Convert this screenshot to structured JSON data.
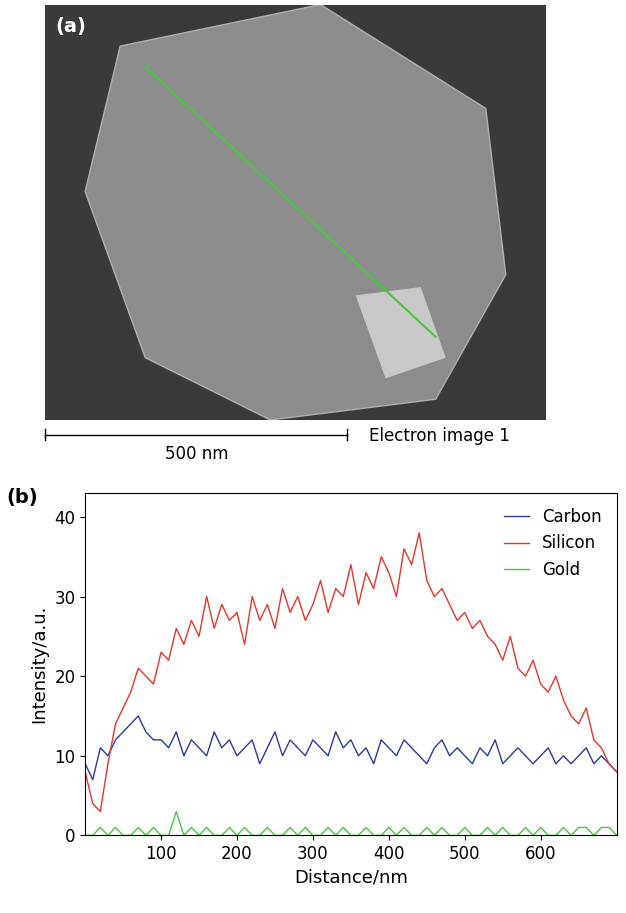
{
  "image": {
    "label": "(a)",
    "scale_bar": "500 nm",
    "caption": "Electron image 1"
  },
  "chart_data": {
    "type": "line",
    "label": "(b)",
    "xlabel": "Distance/nm",
    "ylabel": "Intensity/a.u.",
    "x": [
      0,
      10,
      20,
      30,
      40,
      50,
      60,
      70,
      80,
      90,
      100,
      110,
      120,
      130,
      140,
      150,
      160,
      170,
      180,
      190,
      200,
      210,
      220,
      230,
      240,
      250,
      260,
      270,
      280,
      290,
      300,
      310,
      320,
      330,
      340,
      350,
      360,
      370,
      380,
      390,
      400,
      410,
      420,
      430,
      440,
      450,
      460,
      470,
      480,
      490,
      500,
      510,
      520,
      530,
      540,
      550,
      560,
      570,
      580,
      590,
      600,
      610,
      620,
      630,
      640,
      650,
      660,
      670,
      680,
      690,
      700
    ],
    "series": [
      {
        "name": "Carbon",
        "color": "#2b3a9e",
        "values": [
          9,
          7,
          11,
          10,
          12,
          13,
          14,
          15,
          13,
          12,
          12,
          11,
          13,
          10,
          12,
          11,
          10,
          13,
          11,
          12,
          10,
          11,
          12,
          9,
          11,
          13,
          10,
          12,
          11,
          10,
          12,
          11,
          10,
          13,
          11,
          12,
          10,
          11,
          9,
          12,
          11,
          10,
          12,
          11,
          10,
          9,
          11,
          12,
          10,
          11,
          10,
          9,
          11,
          10,
          12,
          9,
          10,
          11,
          10,
          9,
          10,
          11,
          9,
          10,
          9,
          10,
          11,
          9,
          10,
          9,
          8
        ]
      },
      {
        "name": "Silicon",
        "color": "#e8352a",
        "values": [
          8,
          4,
          3,
          9,
          14,
          16,
          18,
          21,
          20,
          19,
          23,
          22,
          26,
          24,
          27,
          25,
          30,
          26,
          29,
          27,
          28,
          24,
          30,
          27,
          29,
          26,
          31,
          28,
          30,
          27,
          29,
          32,
          28,
          31,
          30,
          34,
          29,
          33,
          31,
          35,
          33,
          30,
          36,
          34,
          38,
          32,
          30,
          31,
          29,
          27,
          28,
          26,
          27,
          25,
          24,
          22,
          25,
          21,
          20,
          22,
          19,
          18,
          20,
          17,
          15,
          14,
          16,
          12,
          11,
          9,
          8
        ]
      },
      {
        "name": "Gold",
        "color": "#46c83a",
        "values": [
          0,
          0,
          1,
          0,
          1,
          0,
          0,
          1,
          0,
          1,
          0,
          0,
          3,
          0,
          1,
          0,
          1,
          0,
          0,
          1,
          0,
          1,
          0,
          0,
          1,
          0,
          0,
          1,
          0,
          1,
          0,
          0,
          1,
          0,
          1,
          0,
          0,
          1,
          0,
          0,
          1,
          0,
          1,
          0,
          0,
          1,
          0,
          1,
          0,
          0,
          1,
          0,
          0,
          1,
          0,
          1,
          0,
          0,
          1,
          0,
          1,
          0,
          0,
          1,
          0,
          1,
          1,
          0,
          1,
          1,
          0
        ]
      }
    ],
    "xlim": [
      0,
      700
    ],
    "ylim": [
      0,
      43
    ],
    "xticks": [
      100,
      200,
      300,
      400,
      500,
      600
    ],
    "yticks": [
      0,
      10,
      20,
      30,
      40
    ],
    "legend": "upper right"
  }
}
